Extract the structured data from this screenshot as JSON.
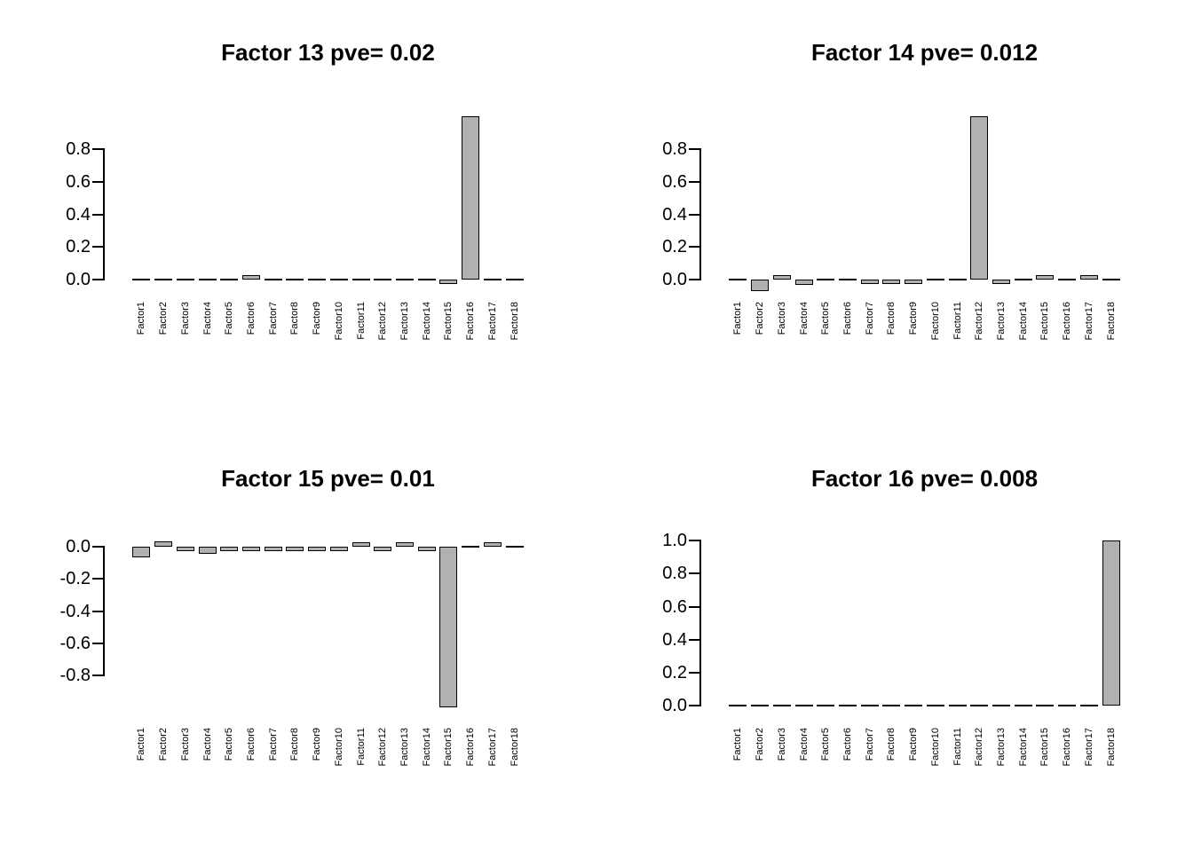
{
  "page": {
    "background": "#ffffff",
    "text_color": "#000000"
  },
  "chart_data": [
    {
      "type": "bar",
      "title": "Factor 13 pve= 0.02",
      "factor_label": "Factor 13",
      "pve": 0.02,
      "categories": [
        "Factor1",
        "Factor2",
        "Factor3",
        "Factor4",
        "Factor5",
        "Factor6",
        "Factor7",
        "Factor8",
        "Factor9",
        "Factor10",
        "Factor11",
        "Factor12",
        "Factor13",
        "Factor14",
        "Factor15",
        "Factor16",
        "Factor17",
        "Factor18"
      ],
      "values": [
        0,
        0,
        0,
        0,
        0,
        0.01,
        0,
        0,
        0,
        0,
        0,
        0,
        0,
        0,
        -0.012,
        1.0,
        0,
        0
      ],
      "yticks": [
        0,
        0.2,
        0.4,
        0.6,
        0.8
      ],
      "ytick_labels": [
        "0.0",
        "0.2",
        "0.4",
        "0.6",
        "0.8"
      ],
      "ylim": [
        -0.09,
        1.14
      ],
      "bar_color": "#b1b1b1",
      "bar_border_color": "#000000",
      "grid": false,
      "legend": false
    },
    {
      "type": "bar",
      "title": "Factor 14 pve= 0.012",
      "factor_label": "Factor 14",
      "pve": 0.012,
      "categories": [
        "Factor1",
        "Factor2",
        "Factor3",
        "Factor4",
        "Factor5",
        "Factor6",
        "Factor7",
        "Factor8",
        "Factor9",
        "Factor10",
        "Factor11",
        "Factor12",
        "Factor13",
        "Factor14",
        "Factor15",
        "Factor16",
        "Factor17",
        "Factor18"
      ],
      "values": [
        0,
        -0.07,
        0.02,
        -0.03,
        0,
        0,
        -0.005,
        -0.012,
        -0.008,
        0,
        0,
        1.0,
        -0.01,
        0,
        0.005,
        0,
        0.015,
        0
      ],
      "yticks": [
        0,
        0.2,
        0.4,
        0.6,
        0.8
      ],
      "ytick_labels": [
        "0.0",
        "0.2",
        "0.4",
        "0.6",
        "0.8"
      ],
      "ylim": [
        -0.09,
        1.14
      ],
      "bar_color": "#b1b1b1",
      "bar_border_color": "#000000",
      "grid": false,
      "legend": false
    },
    {
      "type": "bar",
      "title": "Factor 15 pve= 0.01",
      "factor_label": "Factor 15",
      "pve": 0.01,
      "categories": [
        "Factor1",
        "Factor2",
        "Factor3",
        "Factor4",
        "Factor5",
        "Factor6",
        "Factor7",
        "Factor8",
        "Factor9",
        "Factor10",
        "Factor11",
        "Factor12",
        "Factor13",
        "Factor14",
        "Factor15",
        "Factor16",
        "Factor17",
        "Factor18"
      ],
      "values": [
        -0.065,
        0.035,
        -0.008,
        -0.045,
        -0.03,
        -0.01,
        -0.015,
        -0.005,
        -0.01,
        -0.005,
        0.015,
        -0.025,
        0.01,
        -0.005,
        -1.0,
        0,
        0.012,
        0
      ],
      "yticks": [
        0,
        -0.2,
        -0.4,
        -0.6,
        -0.8
      ],
      "ytick_labels": [
        "0.0",
        "-0.2",
        "-0.4",
        "-0.6",
        "-0.8"
      ],
      "ylim": [
        -1.08,
        0.17
      ],
      "bar_color": "#b1b1b1",
      "bar_border_color": "#000000",
      "grid": false,
      "legend": false
    },
    {
      "type": "bar",
      "title": "Factor 16 pve= 0.008",
      "factor_label": "Factor 16",
      "pve": 0.008,
      "categories": [
        "Factor1",
        "Factor2",
        "Factor3",
        "Factor4",
        "Factor5",
        "Factor6",
        "Factor7",
        "Factor8",
        "Factor9",
        "Factor10",
        "Factor11",
        "Factor12",
        "Factor13",
        "Factor14",
        "Factor15",
        "Factor16",
        "Factor17",
        "Factor18"
      ],
      "values": [
        0,
        0,
        0,
        0,
        0,
        0,
        0,
        0,
        0,
        0,
        0,
        0,
        0,
        0,
        0,
        0,
        0,
        1.0
      ],
      "yticks": [
        0,
        0.2,
        0.4,
        0.6,
        0.8,
        1.0
      ],
      "ytick_labels": [
        "0.0",
        "0.2",
        "0.4",
        "0.6",
        "0.8",
        "1.0"
      ],
      "ylim": [
        -0.09,
        1.13
      ],
      "bar_color": "#b1b1b1",
      "bar_border_color": "#000000",
      "grid": false,
      "legend": false
    }
  ]
}
